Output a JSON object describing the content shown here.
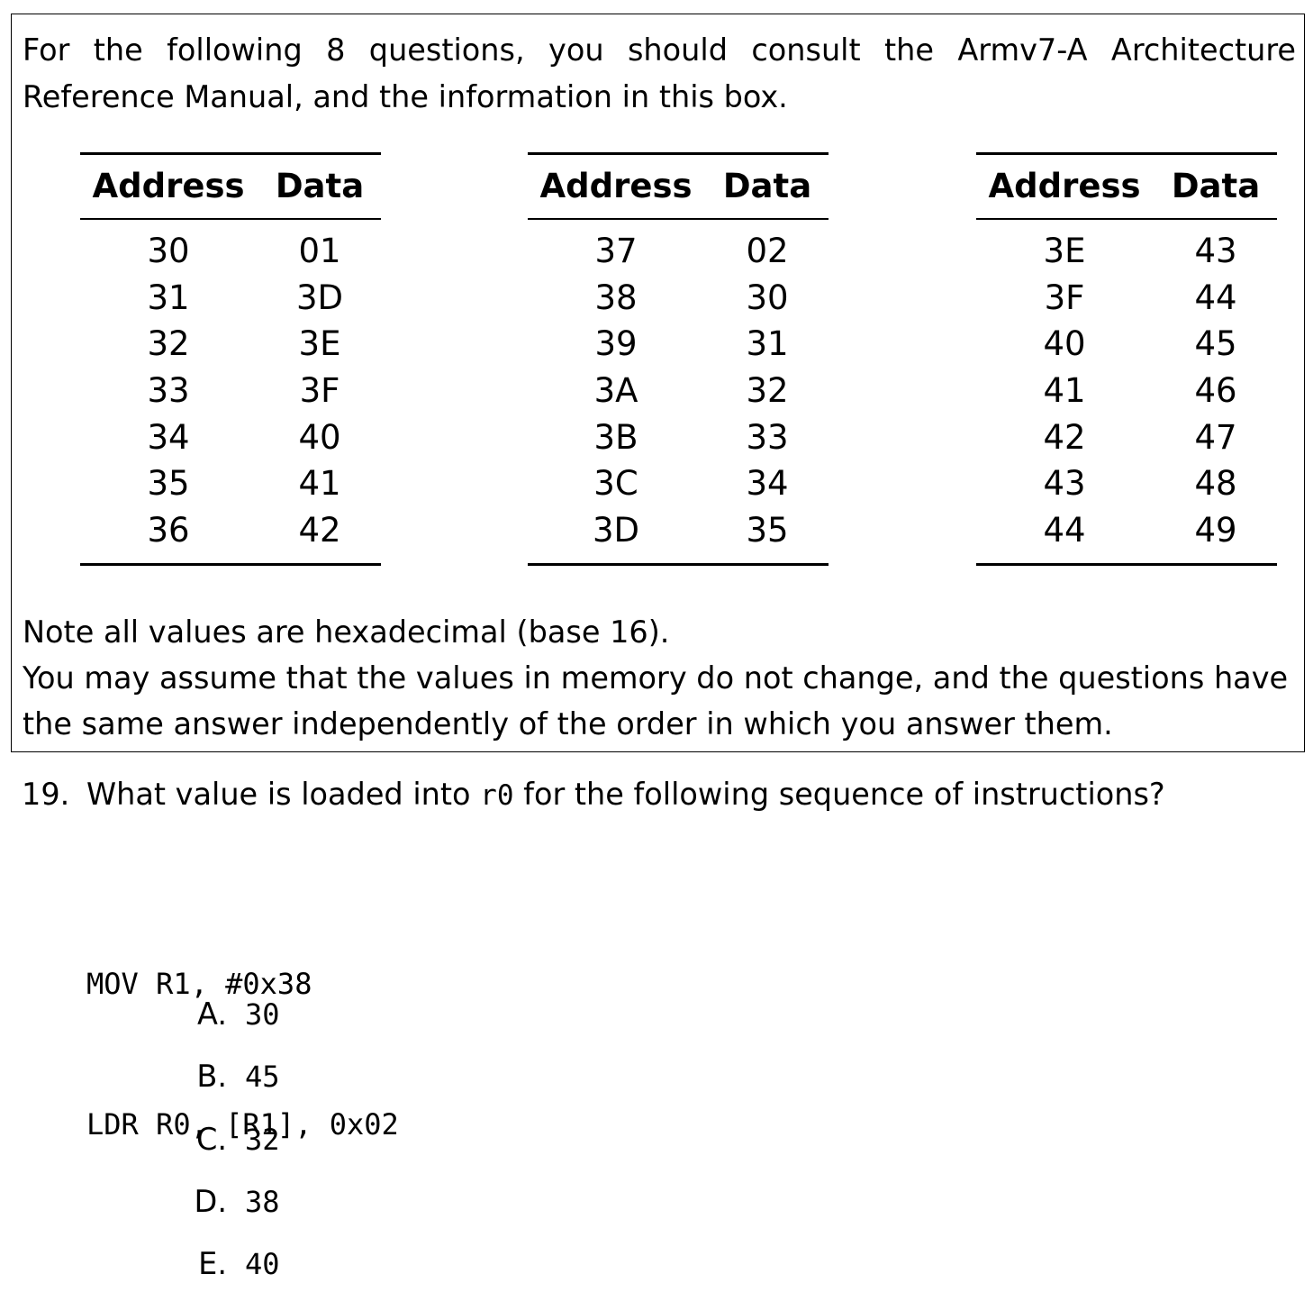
{
  "info_box": {
    "intro": "For the following 8 questions, you should consult the Armv7-A Architecture Reference Manual, and the information in this box.",
    "tables": [
      {
        "headers": [
          "Address",
          "Data"
        ],
        "rows": [
          [
            "30",
            "01"
          ],
          [
            "31",
            "3D"
          ],
          [
            "32",
            "3E"
          ],
          [
            "33",
            "3F"
          ],
          [
            "34",
            "40"
          ],
          [
            "35",
            "41"
          ],
          [
            "36",
            "42"
          ]
        ]
      },
      {
        "headers": [
          "Address",
          "Data"
        ],
        "rows": [
          [
            "37",
            "02"
          ],
          [
            "38",
            "30"
          ],
          [
            "39",
            "31"
          ],
          [
            "3A",
            "32"
          ],
          [
            "3B",
            "33"
          ],
          [
            "3C",
            "34"
          ],
          [
            "3D",
            "35"
          ]
        ]
      },
      {
        "headers": [
          "Address",
          "Data"
        ],
        "rows": [
          [
            "3E",
            "43"
          ],
          [
            "3F",
            "44"
          ],
          [
            "40",
            "45"
          ],
          [
            "41",
            "46"
          ],
          [
            "42",
            "47"
          ],
          [
            "43",
            "48"
          ],
          [
            "44",
            "49"
          ]
        ]
      }
    ],
    "note_lines": [
      "Note all values are hexadecimal (base 16).",
      "You may assume that the values in memory do not change, and the questions have",
      "the same answer independently of the order in which you answer them."
    ]
  },
  "question": {
    "number": "19.",
    "text_before": "What value is loaded into ",
    "register": "r0",
    "text_after": " for the following sequence of instructions?",
    "code": [
      "MOV R1, #0x38",
      "LDR R0, [R1], 0x02"
    ],
    "options": [
      {
        "letter": "A.",
        "value": "30"
      },
      {
        "letter": "B.",
        "value": "45"
      },
      {
        "letter": "C.",
        "value": "32"
      },
      {
        "letter": "D.",
        "value": "38"
      },
      {
        "letter": "E.",
        "value": "40"
      }
    ]
  }
}
